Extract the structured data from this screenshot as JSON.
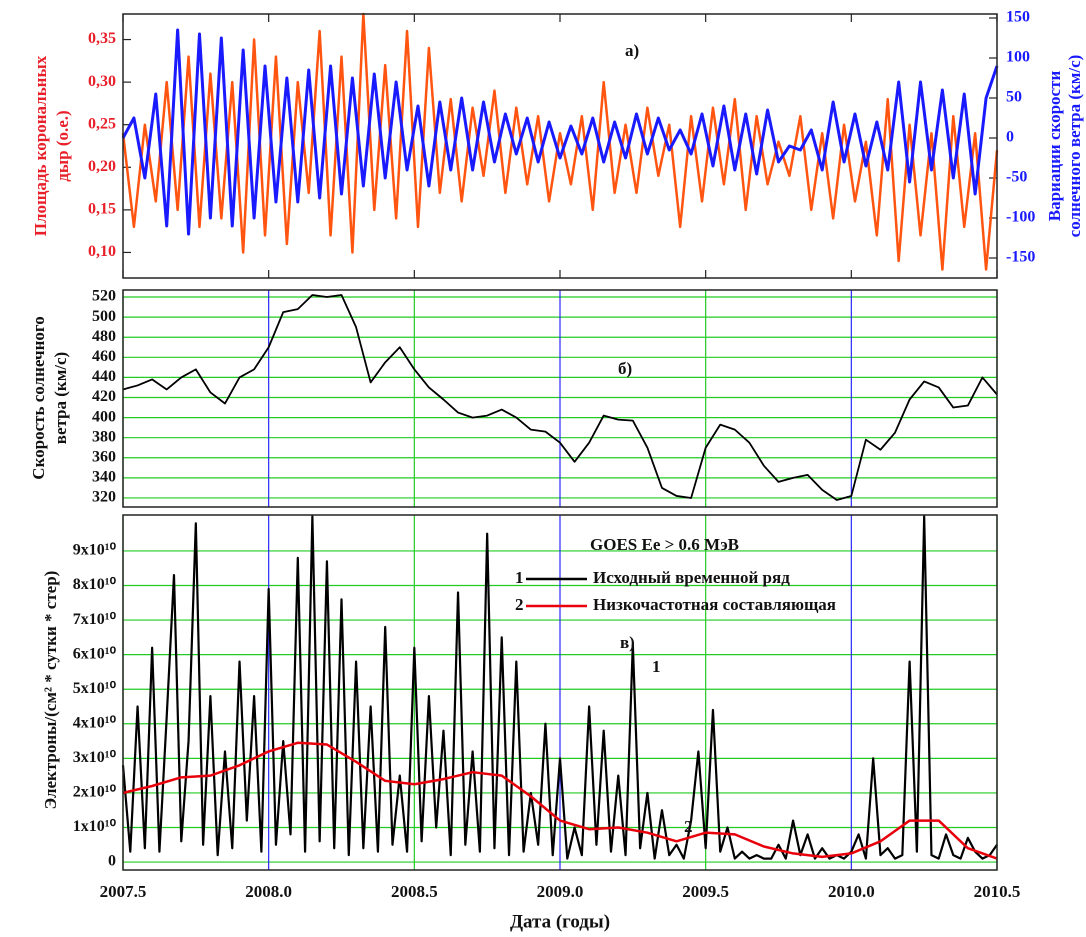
{
  "chart_data": [
    {
      "type": "line",
      "annotations": [
        "а)"
      ],
      "ylabel": [
        "Площадь корональных",
        "дыр (о.е.)"
      ],
      "y2label": [
        "Вариации скорости",
        "солнечного ветра (км/с)"
      ],
      "ylabel_color": "#e8202a",
      "y2label_color": "#1a1aff",
      "xlim": [
        2007.5,
        2010.5
      ],
      "xticks": [
        2007.5,
        2008,
        2008.5,
        2009,
        2009.5,
        2010,
        2010.5
      ],
      "ylim": [
        0.07,
        0.38
      ],
      "yticks": [
        {
          "value": 0.1,
          "label": "0,10"
        },
        {
          "value": 0.15,
          "label": "0,15"
        },
        {
          "value": 0.2,
          "label": "0,20"
        },
        {
          "value": 0.25,
          "label": "0,25"
        },
        {
          "value": 0.3,
          "label": "0,30"
        },
        {
          "value": 0.35,
          "label": "0,35"
        }
      ],
      "y2lim": [
        -175,
        155
      ],
      "y2ticks": [
        -150,
        -100,
        -50,
        0,
        50,
        100,
        150
      ],
      "x": [
        2007.5,
        2007.5375,
        2007.575,
        2007.6125,
        2007.65,
        2007.6875,
        2007.725,
        2007.7625,
        2007.8,
        2007.8375,
        2007.875,
        2007.9125,
        2007.95,
        2007.9875,
        2008.025,
        2008.0625,
        2008.1,
        2008.1375,
        2008.175,
        2008.2125,
        2008.25,
        2008.2875,
        2008.325,
        2008.3625,
        2008.4,
        2008.4375,
        2008.475,
        2008.5125,
        2008.55,
        2008.5875,
        2008.625,
        2008.6625,
        2008.7,
        2008.7375,
        2008.775,
        2008.8125,
        2008.85,
        2008.8875,
        2008.925,
        2008.9625,
        2009.0,
        2009.0375,
        2009.075,
        2009.1125,
        2009.15,
        2009.1875,
        2009.225,
        2009.2625,
        2009.3,
        2009.3375,
        2009.375,
        2009.4125,
        2009.45,
        2009.4875,
        2009.525,
        2009.5625,
        2009.6,
        2009.6375,
        2009.675,
        2009.7125,
        2009.75,
        2009.7875,
        2009.825,
        2009.8625,
        2009.9,
        2009.9375,
        2009.975,
        2010.0125,
        2010.05,
        2010.0875,
        2010.125,
        2010.1625,
        2010.2,
        2010.2375,
        2010.275,
        2010.3125,
        2010.35,
        2010.3875,
        2010.425,
        2010.4625,
        2010.5
      ],
      "series": [
        {
          "color": "#ff5511",
          "width": 2.5,
          "values": [
            0.24,
            0.13,
            0.25,
            0.16,
            0.3,
            0.15,
            0.33,
            0.13,
            0.31,
            0.14,
            0.3,
            0.1,
            0.35,
            0.12,
            0.33,
            0.11,
            0.3,
            0.17,
            0.36,
            0.12,
            0.33,
            0.1,
            0.38,
            0.15,
            0.32,
            0.14,
            0.36,
            0.13,
            0.34,
            0.17,
            0.28,
            0.16,
            0.27,
            0.19,
            0.29,
            0.17,
            0.27,
            0.18,
            0.26,
            0.16,
            0.24,
            0.18,
            0.26,
            0.15,
            0.3,
            0.17,
            0.25,
            0.17,
            0.27,
            0.19,
            0.25,
            0.13,
            0.26,
            0.16,
            0.27,
            0.18,
            0.28,
            0.15,
            0.26,
            0.18,
            0.23,
            0.19,
            0.26,
            0.15,
            0.24,
            0.14,
            0.25,
            0.16,
            0.23,
            0.12,
            0.28,
            0.09,
            0.25,
            0.12,
            0.24,
            0.08,
            0.26,
            0.13,
            0.24,
            0.08,
            0.22
          ]
        },
        {
          "color": "#1a1aff",
          "width": 3,
          "axis": "y2",
          "values": [
            0,
            25,
            -50,
            55,
            -110,
            135,
            -120,
            130,
            -100,
            125,
            -110,
            110,
            -100,
            90,
            -80,
            75,
            -80,
            85,
            -75,
            90,
            -70,
            75,
            -60,
            80,
            -50,
            70,
            -40,
            40,
            -60,
            45,
            -40,
            50,
            -40,
            45,
            -30,
            30,
            -20,
            25,
            -30,
            20,
            -25,
            15,
            -20,
            25,
            -30,
            20,
            -25,
            30,
            -20,
            25,
            -15,
            10,
            -20,
            30,
            -35,
            40,
            -40,
            30,
            -45,
            35,
            -30,
            -10,
            -15,
            10,
            -40,
            45,
            -30,
            30,
            -35,
            20,
            -40,
            70,
            -55,
            70,
            -40,
            60,
            -50,
            55,
            -70,
            50,
            90
          ]
        }
      ]
    },
    {
      "type": "line",
      "annotations": [
        "б)"
      ],
      "ylabel": [
        "Скорость солнечного",
        "ветра (км/с)"
      ],
      "xlim": [
        2007.5,
        2010.5
      ],
      "xticks": [
        2007.5,
        2008,
        2008.5,
        2009,
        2009.5,
        2010,
        2010.5
      ],
      "ylim": [
        311,
        527
      ],
      "yticks": [
        320,
        340,
        360,
        380,
        400,
        420,
        440,
        460,
        480,
        500,
        520
      ],
      "grid": true,
      "grid_color": "#22cc22",
      "xgrid_colors": [
        "#22cc22",
        "#2828ff"
      ],
      "x": [
        2007.5,
        2007.55,
        2007.6,
        2007.65,
        2007.7,
        2007.75,
        2007.8,
        2007.85,
        2007.9,
        2007.95,
        2008.0,
        2008.05,
        2008.1,
        2008.15,
        2008.2,
        2008.25,
        2008.3,
        2008.35,
        2008.4,
        2008.45,
        2008.5,
        2008.55,
        2008.6,
        2008.65,
        2008.7,
        2008.75,
        2008.8,
        2008.85,
        2008.9,
        2008.95,
        2009.0,
        2009.05,
        2009.1,
        2009.15,
        2009.2,
        2009.25,
        2009.3,
        2009.35,
        2009.4,
        2009.45,
        2009.5,
        2009.55,
        2009.6,
        2009.65,
        2009.7,
        2009.75,
        2009.8,
        2009.85,
        2009.9,
        2009.95,
        2010.0,
        2010.05,
        2010.1,
        2010.15,
        2010.2,
        2010.25,
        2010.3,
        2010.35,
        2010.4,
        2010.45,
        2010.5
      ],
      "series": [
        {
          "color": "#000000",
          "width": 1.8,
          "values": [
            428,
            432,
            438,
            428,
            440,
            448,
            425,
            414,
            440,
            448,
            470,
            505,
            508,
            522,
            520,
            522,
            490,
            435,
            455,
            470,
            448,
            430,
            418,
            405,
            400,
            402,
            408,
            400,
            388,
            386,
            375,
            356,
            375,
            402,
            398,
            397,
            370,
            330,
            322,
            320,
            370,
            393,
            388,
            375,
            352,
            336,
            340,
            343,
            328,
            318,
            322,
            378,
            368,
            385,
            418,
            436,
            430,
            410,
            412,
            440,
            423
          ]
        }
      ]
    },
    {
      "type": "line",
      "annotations": [
        "GOES    Ee > 0.6 МэВ",
        "в)",
        "1",
        "2"
      ],
      "ylabel": "Электроны/(см² * сутки * стер)",
      "xlabel": "Дата (годы)",
      "xlim": [
        2007.5,
        2010.5
      ],
      "xticks": [
        {
          "value": 2007.5,
          "label": "2007.5"
        },
        {
          "value": 2008,
          "label": "2008.0"
        },
        {
          "value": 2008.5,
          "label": "2008.5"
        },
        {
          "value": 2009,
          "label": "2009.0"
        },
        {
          "value": 2009.5,
          "label": "2009.5"
        },
        {
          "value": 2010,
          "label": "2010.0"
        },
        {
          "value": 2010.5,
          "label": "2010.5"
        }
      ],
      "ylim": [
        -2300000000.0,
        100400000000.0
      ],
      "yticks": [
        0,
        {
          "value": 10000000000.0,
          "label": "1x10¹⁰"
        },
        {
          "value": 20000000000.0,
          "label": "2x10¹⁰"
        },
        {
          "value": 30000000000.0,
          "label": "3x10¹⁰"
        },
        {
          "value": 40000000000.0,
          "label": "4x10¹⁰"
        },
        {
          "value": 50000000000.0,
          "label": "5x10¹⁰"
        },
        {
          "value": 60000000000.0,
          "label": "6x10¹⁰"
        },
        {
          "value": 70000000000.0,
          "label": "7x10¹⁰"
        },
        {
          "value": 80000000000.0,
          "label": "8x10¹⁰"
        },
        {
          "value": 90000000000.0,
          "label": "9x10¹⁰"
        }
      ],
      "grid": true,
      "grid_color": "#22cc22",
      "xgrid_colors": [
        "#22cc22",
        "#2828ff"
      ],
      "series": [
        {
          "name": "Исходный временной ряд",
          "legend_number": "1",
          "color": "#000000",
          "width": 2.2,
          "x": [
            2007.5,
            2007.525,
            2007.55,
            2007.575,
            2007.6,
            2007.625,
            2007.65,
            2007.675,
            2007.7,
            2007.725,
            2007.75,
            2007.775,
            2007.8,
            2007.825,
            2007.85,
            2007.875,
            2007.9,
            2007.925,
            2007.95,
            2007.975,
            2008.0,
            2008.025,
            2008.05,
            2008.075,
            2008.1,
            2008.125,
            2008.15,
            2008.175,
            2008.2,
            2008.225,
            2008.25,
            2008.275,
            2008.3,
            2008.325,
            2008.35,
            2008.375,
            2008.4,
            2008.425,
            2008.45,
            2008.475,
            2008.5,
            2008.525,
            2008.55,
            2008.575,
            2008.6,
            2008.625,
            2008.65,
            2008.675,
            2008.7,
            2008.725,
            2008.75,
            2008.775,
            2008.8,
            2008.825,
            2008.85,
            2008.875,
            2008.9,
            2008.925,
            2008.95,
            2008.975,
            2009.0,
            2009.025,
            2009.05,
            2009.075,
            2009.1,
            2009.125,
            2009.15,
            2009.175,
            2009.2,
            2009.225,
            2009.25,
            2009.275,
            2009.3,
            2009.325,
            2009.35,
            2009.375,
            2009.4,
            2009.425,
            2009.45,
            2009.475,
            2009.5,
            2009.525,
            2009.55,
            2009.575,
            2009.6,
            2009.625,
            2009.65,
            2009.675,
            2009.7,
            2009.725,
            2009.75,
            2009.775,
            2009.8,
            2009.825,
            2009.85,
            2009.875,
            2009.9,
            2009.925,
            2009.95,
            2009.975,
            2010.0,
            2010.025,
            2010.05,
            2010.075,
            2010.1,
            2010.125,
            2010.15,
            2010.175,
            2010.2,
            2010.225,
            2010.25,
            2010.275,
            2010.3,
            2010.325,
            2010.35,
            2010.375,
            2010.4,
            2010.425,
            2010.45,
            2010.475,
            2010.5
          ],
          "values": [
            28000000000.0,
            3000000000.0,
            45000000000.0,
            4000000000.0,
            62000000000.0,
            3000000000.0,
            42000000000.0,
            83000000000.0,
            6000000000.0,
            35000000000.0,
            98000000000.0,
            5000000000.0,
            48000000000.0,
            2000000000.0,
            32000000000.0,
            4000000000.0,
            58000000000.0,
            12000000000.0,
            48000000000.0,
            3000000000.0,
            79000000000.0,
            5000000000.0,
            35000000000.0,
            8000000000.0,
            88000000000.0,
            3000000000.0,
            100000000000.0,
            6000000000.0,
            87000000000.0,
            4000000000.0,
            76000000000.0,
            2000000000.0,
            58000000000.0,
            4000000000.0,
            45000000000.0,
            3000000000.0,
            68000000000.0,
            5000000000.0,
            25000000000.0,
            3000000000.0,
            62000000000.0,
            6000000000.0,
            48000000000.0,
            10000000000.0,
            38000000000.0,
            2000000000.0,
            78000000000.0,
            5000000000.0,
            32000000000.0,
            3000000000.0,
            95000000000.0,
            4000000000.0,
            65000000000.0,
            2000000000.0,
            58000000000.0,
            3000000000.0,
            20000000000.0,
            5000000000.0,
            40000000000.0,
            2000000000.0,
            30000000000.0,
            1000000000.0,
            10000000000.0,
            2000000000.0,
            45000000000.0,
            5000000000.0,
            38000000000.0,
            3000000000.0,
            25000000000.0,
            2000000000.0,
            63000000000.0,
            4000000000.0,
            20000000000.0,
            1000000000.0,
            15000000000.0,
            2000000000.0,
            5000000000.0,
            1000000000.0,
            12000000000.0,
            32000000000.0,
            4000000000.0,
            44000000000.0,
            3000000000.0,
            10000000000.0,
            1000000000.0,
            3000000000.0,
            1000000000.0,
            2000000000.0,
            1000000000.0,
            1000000000.0,
            5000000000.0,
            1000000000.0,
            12000000000.0,
            2000000000.0,
            8000000000.0,
            1000000000.0,
            4000000000.0,
            1000000000.0,
            2000000000.0,
            1000000000.0,
            3000000000.0,
            8000000000.0,
            1000000000.0,
            30000000000.0,
            2000000000.0,
            4000000000.0,
            1000000000.0,
            2000000000.0,
            58000000000.0,
            3000000000.0,
            100000000000.0,
            2000000000.0,
            1000000000.0,
            8000000000.0,
            2000000000.0,
            1000000000.0,
            7000000000.0,
            3000000000.0,
            1000000000.0,
            2000000000.0,
            5000000000.0
          ]
        },
        {
          "name": "Низкочастотная составляющая",
          "legend_number": "2",
          "color": "#e8000b",
          "width": 2.5,
          "x": [
            2007.5,
            2007.6,
            2007.7,
            2007.8,
            2007.9,
            2008.0,
            2008.1,
            2008.2,
            2008.3,
            2008.4,
            2008.5,
            2008.6,
            2008.7,
            2008.8,
            2008.9,
            2009.0,
            2009.1,
            2009.2,
            2009.3,
            2009.4,
            2009.5,
            2009.6,
            2009.7,
            2009.8,
            2009.9,
            2010.0,
            2010.1,
            2010.2,
            2010.3,
            2010.4,
            2010.5
          ],
          "values": [
            20000000000.0,
            22000000000.0,
            24500000000.0,
            25000000000.0,
            28000000000.0,
            32000000000.0,
            34500000000.0,
            34000000000.0,
            29000000000.0,
            23500000000.0,
            22500000000.0,
            24000000000.0,
            26000000000.0,
            25000000000.0,
            19000000000.0,
            12000000000.0,
            9500000000.0,
            10000000000.0,
            8500000000.0,
            6000000000.0,
            8500000000.0,
            8000000000.0,
            4500000000.0,
            2500000000.0,
            1500000000.0,
            2500000000.0,
            6000000000.0,
            12000000000.0,
            12000000000.0,
            4000000000.0,
            1000000000.0
          ]
        }
      ]
    }
  ]
}
